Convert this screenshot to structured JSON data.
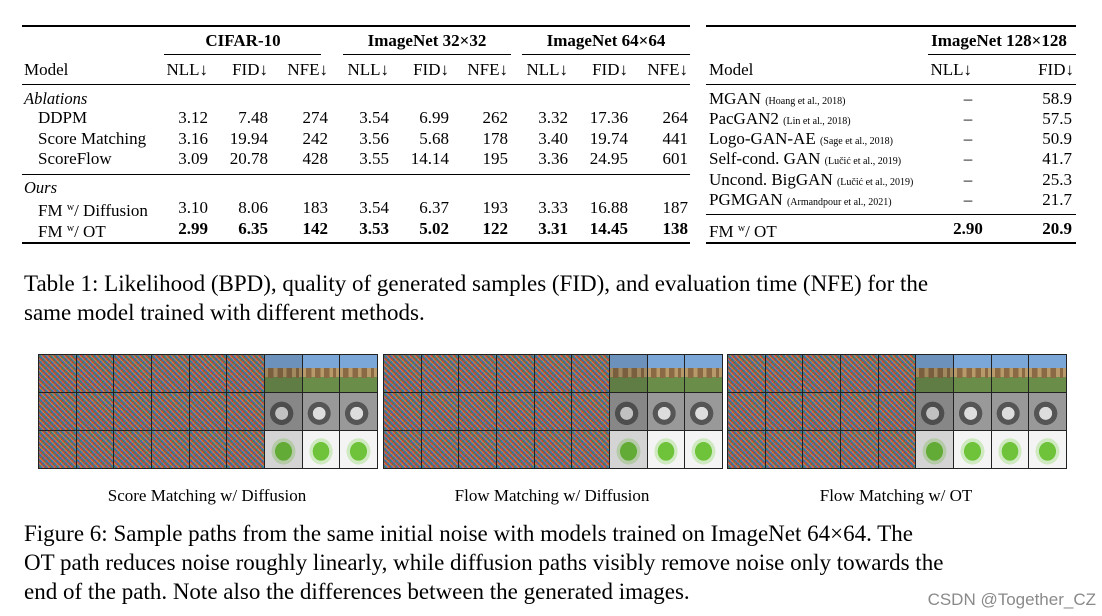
{
  "table_left": {
    "group_headers": [
      "CIFAR-10",
      "ImageNet 32×32",
      "ImageNet 64×64"
    ],
    "column_headers": [
      "Model",
      "NLL↓",
      "FID↓",
      "NFE↓",
      "NLL↓",
      "FID↓",
      "NFE↓",
      "NLL↓",
      "FID↓",
      "NFE↓"
    ],
    "sections": [
      {
        "title": "Ablations",
        "rows": [
          {
            "model": "DDPM",
            "values": [
              "3.12",
              "7.48",
              "274",
              "3.54",
              "6.99",
              "262",
              "3.32",
              "17.36",
              "264"
            ]
          },
          {
            "model": "Score Matching",
            "values": [
              "3.16",
              "19.94",
              "242",
              "3.56",
              "5.68",
              "178",
              "3.40",
              "19.74",
              "441"
            ]
          },
          {
            "model": "ScoreFlow",
            "values": [
              "3.09",
              "20.78",
              "428",
              "3.55",
              "14.14",
              "195",
              "3.36",
              "24.95",
              "601"
            ]
          }
        ]
      },
      {
        "title": "Ours",
        "rows": [
          {
            "model_prefix": "FM ",
            "model_sup": "w",
            "model_suffix": "/ Diffusion",
            "values": [
              "3.10",
              "8.06",
              "183",
              "3.54",
              "6.37",
              "193",
              "3.33",
              "16.88",
              "187"
            ]
          },
          {
            "model_prefix": "FM ",
            "model_sup": "w",
            "model_suffix": "/ OT",
            "values": [
              "2.99",
              "6.35",
              "142",
              "3.53",
              "5.02",
              "122",
              "3.31",
              "14.45",
              "138"
            ]
          }
        ]
      }
    ]
  },
  "table_right": {
    "group_header": "ImageNet 128×128",
    "column_headers": [
      "Model",
      "NLL↓",
      "FID↓"
    ],
    "rows": [
      {
        "model": "MGAN",
        "cite": "(Hoang et al., 2018)",
        "nll": "–",
        "fid": "58.9"
      },
      {
        "model": "PacGAN2",
        "cite": "(Lin et al., 2018)",
        "nll": "–",
        "fid": "57.5"
      },
      {
        "model": "Logo-GAN-AE",
        "cite": "(Sage et al., 2018)",
        "nll": "–",
        "fid": "50.9"
      },
      {
        "model": "Self-cond. GAN",
        "cite": "(Lučić et al., 2019)",
        "nll": "–",
        "fid": "41.7"
      },
      {
        "model": "Uncond. BigGAN",
        "cite": "(Lučić et al., 2019)",
        "nll": "–",
        "fid": "25.3"
      },
      {
        "model": "PGMGAN",
        "cite": "(Armandpour et al., 2021)",
        "nll": "–",
        "fid": "21.7"
      }
    ],
    "final_row": {
      "model_prefix": "FM ",
      "model_sup": "w",
      "model_suffix": "/ OT",
      "nll": "2.90",
      "fid": "20.9"
    }
  },
  "table_caption": {
    "line1": "Table 1: Likelihood (BPD), quality of generated samples (FID), and evaluation time (NFE) for the",
    "line2": "same model trained with different methods."
  },
  "figure": {
    "panel_labels": [
      "Score Matching w/ Diffusion",
      "Flow Matching w/ Diffusion",
      "Flow Matching w/ OT"
    ],
    "caption_line1": "Figure 6: Sample paths from the same initial noise with models trained on ImageNet 64×64.  The",
    "caption_line2": "OT path reduces noise roughly linearly, while diffusion paths visibly remove noise only towards the",
    "caption_line3": "end of the path. Note also the differences between the generated images."
  },
  "watermark": "CSDN @Together_CZ"
}
